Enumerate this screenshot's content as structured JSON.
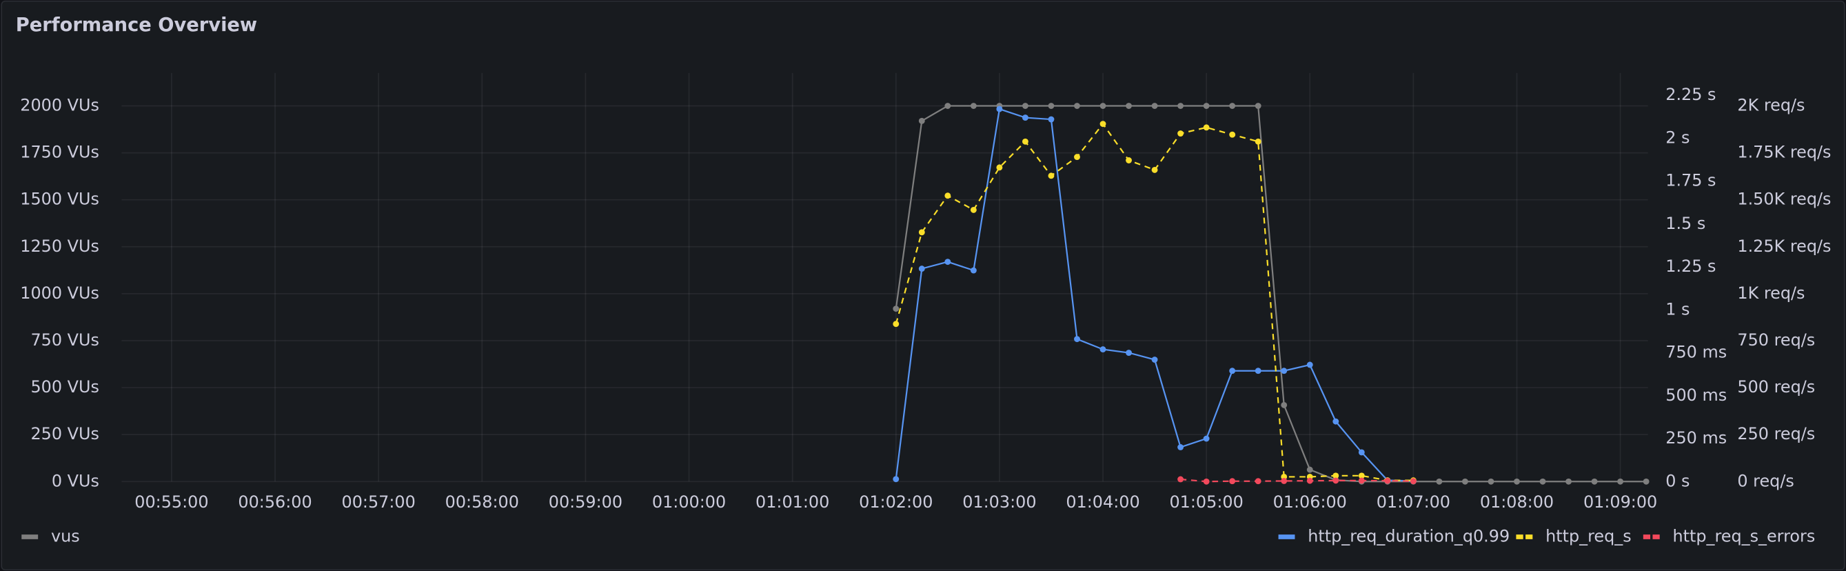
{
  "chart_data": {
    "type": "line",
    "title": "Performance Overview",
    "x": [
      "01:02:00",
      "01:02:15",
      "01:02:30",
      "01:02:45",
      "01:03:00",
      "01:03:15",
      "01:03:30",
      "01:03:45",
      "01:04:00",
      "01:04:15",
      "01:04:30",
      "01:04:45",
      "01:05:00",
      "01:05:15",
      "01:05:30",
      "01:05:45",
      "01:06:00",
      "01:06:15",
      "01:06:30",
      "01:06:45",
      "01:07:00",
      "01:07:15",
      "01:07:30",
      "01:07:45",
      "01:08:00",
      "01:08:15",
      "01:08:30",
      "01:08:45",
      "01:09:00",
      "01:09:15"
    ],
    "xlim": [
      "00:54:31",
      "01:09:16"
    ],
    "xticks": [
      "00:55:00",
      "00:56:00",
      "00:57:00",
      "00:58:00",
      "00:59:00",
      "01:00:00",
      "01:01:00",
      "01:02:00",
      "01:03:00",
      "01:04:00",
      "01:05:00",
      "01:06:00",
      "01:07:00",
      "01:08:00",
      "01:09:00"
    ],
    "ylim": [
      0,
      2175
    ],
    "yticks": [
      {
        "value": 0,
        "label": "0 VUs"
      },
      {
        "value": 250,
        "label": "250 VUs"
      },
      {
        "value": 500,
        "label": "500 VUs"
      },
      {
        "value": 750,
        "label": "750 VUs"
      },
      {
        "value": 1000,
        "label": "1000 VUs"
      },
      {
        "value": 1250,
        "label": "1250 VUs"
      },
      {
        "value": 1500,
        "label": "1500 VUs"
      },
      {
        "value": 1750,
        "label": "1750 VUs"
      },
      {
        "value": 2000,
        "label": "2000 VUs"
      }
    ],
    "y2lim": [
      0,
      2.38
    ],
    "y2ticks": [
      {
        "value": 0,
        "label": "0 s"
      },
      {
        "value": 0.25,
        "label": "250 ms"
      },
      {
        "value": 0.5,
        "label": "500 ms"
      },
      {
        "value": 0.75,
        "label": "750 ms"
      },
      {
        "value": 1,
        "label": "1 s"
      },
      {
        "value": 1.25,
        "label": "1.25 s"
      },
      {
        "value": 1.5,
        "label": "1.5 s"
      },
      {
        "value": 1.75,
        "label": "1.75 s"
      },
      {
        "value": 2,
        "label": "2 s"
      },
      {
        "value": 2.25,
        "label": "2.25 s"
      }
    ],
    "y3lim": [
      0,
      2175
    ],
    "y3ticks": [
      {
        "value": 0,
        "label": "0 req/s"
      },
      {
        "value": 250,
        "label": "250 req/s"
      },
      {
        "value": 500,
        "label": "500 req/s"
      },
      {
        "value": 750,
        "label": "750 req/s"
      },
      {
        "value": 1000,
        "label": "1K req/s"
      },
      {
        "value": 1250,
        "label": "1.25K req/s"
      },
      {
        "value": 1500,
        "label": "1.50K req/s"
      },
      {
        "value": 1750,
        "label": "1.75K req/s"
      },
      {
        "value": 2000,
        "label": "2K req/s"
      }
    ],
    "grid": true,
    "series": [
      {
        "name": "vus",
        "color": "#7f7f7f",
        "axis": "y",
        "line_style": "solid",
        "values": [
          920,
          1920,
          2000,
          2000,
          2000,
          2000,
          2000,
          2000,
          2000,
          2000,
          2000,
          2000,
          2000,
          2000,
          2000,
          407,
          63,
          8,
          0,
          0,
          0,
          0,
          0,
          0,
          0,
          0,
          0,
          0,
          0,
          0
        ]
      },
      {
        "name": "http_req_duration_q0.99",
        "color": "#5794f2",
        "axis": "y2",
        "line_style": "solid",
        "values": [
          0.014,
          1.24,
          1.28,
          1.23,
          2.17,
          2.12,
          2.11,
          0.83,
          0.77,
          0.75,
          0.71,
          0.2,
          0.25,
          0.645,
          0.645,
          0.645,
          0.68,
          0.35,
          0.17,
          0.007,
          0.003,
          null,
          null,
          null,
          null,
          null,
          null,
          null,
          null,
          null
        ]
      },
      {
        "name": "http_req_s",
        "color": "#fade2a",
        "axis": "y3",
        "line_style": "dashed",
        "values": [
          839,
          1327,
          1522,
          1446,
          1672,
          1810,
          1628,
          1728,
          1904,
          1710,
          1659,
          1853,
          1885,
          1847,
          1810,
          25,
          25,
          31,
          31,
          6,
          6,
          null,
          null,
          null,
          null,
          null,
          null,
          null,
          null,
          null
        ]
      },
      {
        "name": "http_req_s_errors",
        "color": "#f2495c",
        "axis": "y3",
        "line_style": "dashed",
        "values": [
          null,
          null,
          null,
          null,
          null,
          null,
          null,
          null,
          null,
          null,
          null,
          12,
          0,
          2,
          2,
          3,
          4,
          5,
          5,
          4,
          2,
          null,
          null,
          null,
          null,
          null,
          null,
          null,
          null,
          null
        ]
      }
    ]
  }
}
